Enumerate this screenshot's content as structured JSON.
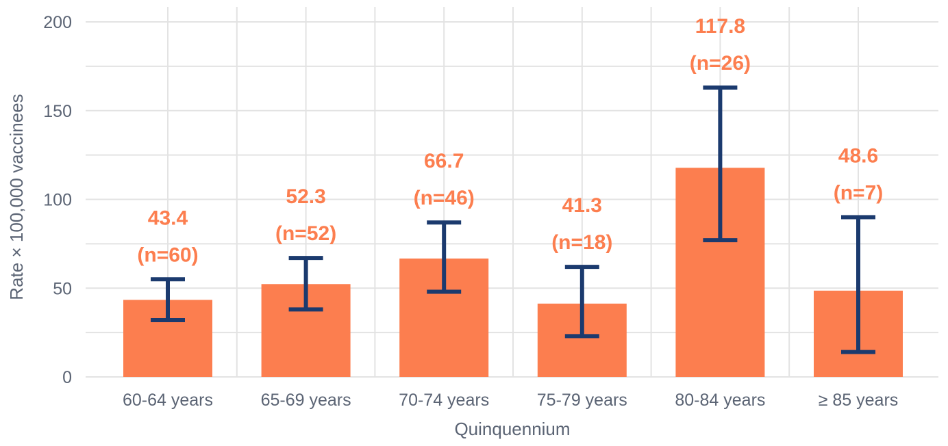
{
  "chart_data": {
    "type": "bar",
    "title": "",
    "xlabel": "Quinquennium",
    "ylabel": "Rate × 100,000 vaccinees",
    "ylim": [
      0,
      200
    ],
    "yticks": [
      0,
      50,
      100,
      150,
      200
    ],
    "grid": true,
    "legend": "none",
    "categories": [
      "60-64 years",
      "65-69 years",
      "70-74 years",
      "75-79 years",
      "80-84 years",
      "≥ 85 years"
    ],
    "values": [
      43.4,
      52.3,
      66.7,
      41.3,
      117.8,
      48.6
    ],
    "error_low": [
      32,
      38,
      48,
      23,
      77,
      14
    ],
    "error_high": [
      55,
      67,
      87,
      62,
      163,
      90
    ],
    "labels": [
      {
        "value": "43.4",
        "n": "(n=60)"
      },
      {
        "value": "52.3",
        "n": "(n=52)"
      },
      {
        "value": "66.7",
        "n": "(n=46)"
      },
      {
        "value": "41.3",
        "n": "(n=18)"
      },
      {
        "value": "117.8",
        "n": "(n=26)"
      },
      {
        "value": "48.6",
        "n": "(n=7)"
      }
    ],
    "colors": {
      "bar": "#fc7e4f",
      "error": "#1b3a6e",
      "label": "#fc7e4f"
    }
  }
}
